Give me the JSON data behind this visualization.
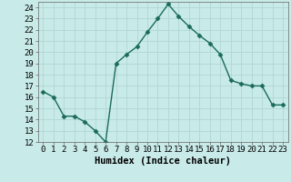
{
  "x": [
    0,
    1,
    2,
    3,
    4,
    5,
    6,
    7,
    8,
    9,
    10,
    11,
    12,
    13,
    14,
    15,
    16,
    17,
    18,
    19,
    20,
    21,
    22,
    23
  ],
  "y": [
    16.5,
    16.0,
    14.3,
    14.3,
    13.8,
    13.0,
    12.0,
    19.0,
    19.8,
    20.5,
    21.8,
    23.0,
    24.3,
    23.2,
    22.3,
    21.5,
    20.8,
    19.8,
    17.5,
    17.2,
    17.0,
    17.0,
    15.3,
    15.3
  ],
  "xlabel": "Humidex (Indice chaleur)",
  "ylim": [
    12,
    24.5
  ],
  "xlim": [
    -0.5,
    23.5
  ],
  "yticks": [
    12,
    13,
    14,
    15,
    16,
    17,
    18,
    19,
    20,
    21,
    22,
    23,
    24
  ],
  "xticks": [
    0,
    1,
    2,
    3,
    4,
    5,
    6,
    7,
    8,
    9,
    10,
    11,
    12,
    13,
    14,
    15,
    16,
    17,
    18,
    19,
    20,
    21,
    22,
    23
  ],
  "xtick_labels": [
    "0",
    "1",
    "2",
    "3",
    "4",
    "5",
    "6",
    "7",
    "8",
    "9",
    "10",
    "11",
    "12",
    "13",
    "14",
    "15",
    "16",
    "17",
    "18",
    "19",
    "20",
    "21",
    "22",
    "23"
  ],
  "line_color": "#1a6b5a",
  "marker": "D",
  "marker_size": 2.5,
  "background_color": "#c8eae8",
  "grid_color": "#b0d8d4",
  "xlabel_fontsize": 7.5,
  "tick_fontsize": 6.5
}
